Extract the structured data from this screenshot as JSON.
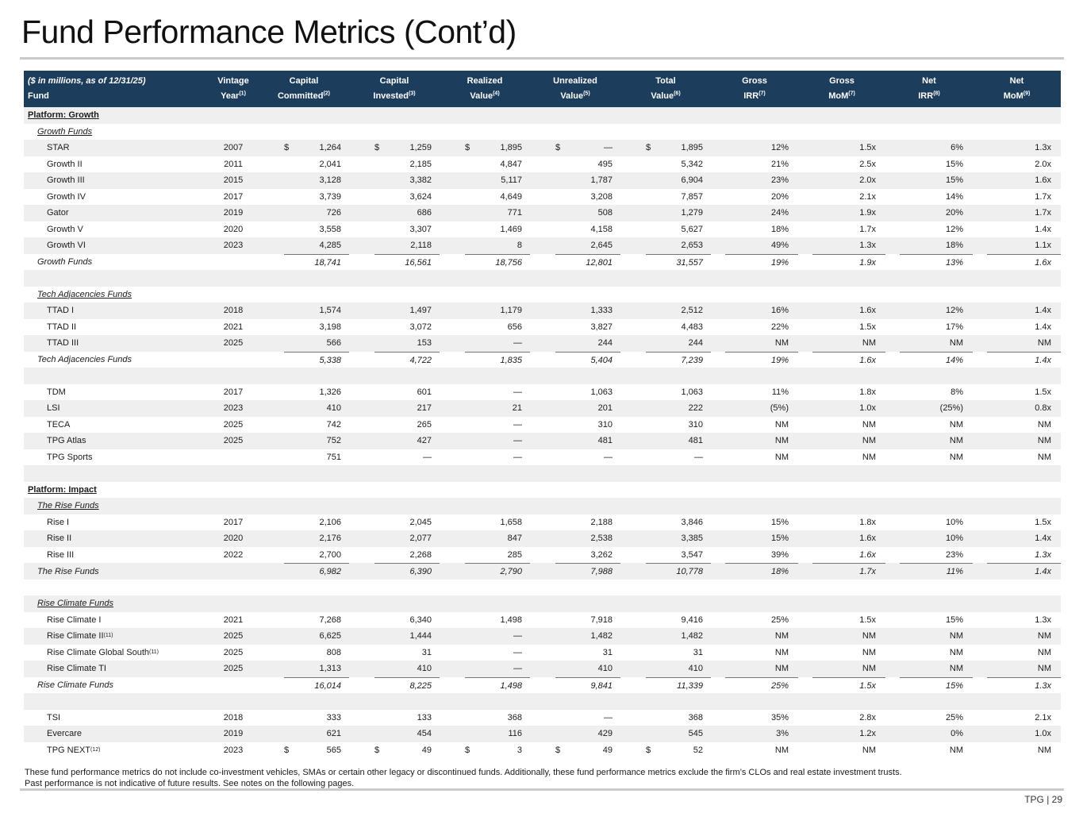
{
  "page": {
    "title": "Fund Performance Metrics (Cont’d)",
    "note_line1": "These fund performance metrics do not include co-investment vehicles, SMAs or certain other legacy or discontinued funds. Additionally, these fund performance metrics exclude the firm’s CLOs and real estate investment trusts.",
    "note_line2": "Past performance is not indicative of future results. See notes on the following pages.",
    "page_label": "TPG | 29"
  },
  "colors": {
    "header_bg": "#1d3d5c",
    "header_text": "#ffffff",
    "row_stripe": "#efefef",
    "total_rule": "#757575",
    "divider": "#c9c9c9",
    "text": "#1b1b1b"
  },
  "table": {
    "columns": [
      {
        "line1": "($ in millions, as of 12/31/25)",
        "line2": "Fund",
        "sup": ""
      },
      {
        "line1": "Vintage",
        "line2": "Year",
        "sup": "(1)"
      },
      {
        "line1": "Capital",
        "line2": "Committed",
        "sup": "(2)"
      },
      {
        "line1": "Capital",
        "line2": "Invested",
        "sup": "(3)"
      },
      {
        "line1": "Realized",
        "line2": "Value",
        "sup": "(4)"
      },
      {
        "line1": "Unrealized",
        "line2": "Value",
        "sup": "(5)"
      },
      {
        "line1": "Total",
        "line2": "Value",
        "sup": "(6)"
      },
      {
        "line1": "Gross",
        "line2": "IRR",
        "sup": "(7)"
      },
      {
        "line1": "Gross",
        "line2": "MoM",
        "sup": "(7)"
      },
      {
        "line1": "Net",
        "line2": "IRR",
        "sup": "(8)"
      },
      {
        "line1": "Net",
        "line2": "MoM",
        "sup": "(9)"
      }
    ],
    "rows": [
      {
        "t": "platform",
        "label": "Platform: Growth"
      },
      {
        "t": "sub",
        "label": "Growth Funds"
      },
      {
        "t": "fund",
        "name": "STAR",
        "sup": "",
        "vintage": "2007",
        "ds": true,
        "committed": "1,264",
        "invested": "1,259",
        "realized": "1,895",
        "unrealized": "—",
        "total_value": "1,895",
        "gross_irr": "12%",
        "gross_mom": "1.5x",
        "net_irr": "6%",
        "net_mom": "1.3x"
      },
      {
        "t": "fund",
        "name": "Growth II",
        "sup": "",
        "vintage": "2011",
        "committed": "2,041",
        "invested": "2,185",
        "realized": "4,847",
        "unrealized": "495",
        "total_value": "5,342",
        "gross_irr": "21%",
        "gross_mom": "2.5x",
        "net_irr": "15%",
        "net_mom": "2.0x"
      },
      {
        "t": "fund",
        "name": "Growth III",
        "sup": "",
        "vintage": "2015",
        "committed": "3,128",
        "invested": "3,382",
        "realized": "5,117",
        "unrealized": "1,787",
        "total_value": "6,904",
        "gross_irr": "23%",
        "gross_mom": "2.0x",
        "net_irr": "15%",
        "net_mom": "1.6x"
      },
      {
        "t": "fund",
        "name": "Growth IV",
        "sup": "",
        "vintage": "2017",
        "committed": "3,739",
        "invested": "3,624",
        "realized": "4,649",
        "unrealized": "3,208",
        "total_value": "7,857",
        "gross_irr": "20%",
        "gross_mom": "2.1x",
        "net_irr": "14%",
        "net_mom": "1.7x"
      },
      {
        "t": "fund",
        "name": "Gator",
        "sup": "",
        "vintage": "2019",
        "committed": "726",
        "invested": "686",
        "realized": "771",
        "unrealized": "508",
        "total_value": "1,279",
        "gross_irr": "24%",
        "gross_mom": "1.9x",
        "net_irr": "20%",
        "net_mom": "1.7x"
      },
      {
        "t": "fund",
        "name": "Growth V",
        "sup": "",
        "vintage": "2020",
        "committed": "3,558",
        "invested": "3,307",
        "realized": "1,469",
        "unrealized": "4,158",
        "total_value": "5,627",
        "gross_irr": "18%",
        "gross_mom": "1.7x",
        "net_irr": "12%",
        "net_mom": "1.4x"
      },
      {
        "t": "fund",
        "name": "Growth VI",
        "sup": "",
        "vintage": "2023",
        "committed": "4,285",
        "invested": "2,118",
        "realized": "8",
        "unrealized": "2,645",
        "total_value": "2,653",
        "gross_irr": "49%",
        "gross_mom": "1.3x",
        "net_irr": "18%",
        "net_mom": "1.1x"
      },
      {
        "t": "total",
        "name": "Growth Funds",
        "vintage": "",
        "committed": "18,741",
        "invested": "16,561",
        "realized": "18,756",
        "unrealized": "12,801",
        "total_value": "31,557",
        "gross_irr": "19%",
        "gross_mom": "1.9x",
        "net_irr": "13%",
        "net_mom": "1.6x"
      },
      {
        "t": "spacer"
      },
      {
        "t": "sub",
        "label": "Tech Adjacencies Funds"
      },
      {
        "t": "fund",
        "name": "TTAD I",
        "sup": "",
        "vintage": "2018",
        "committed": "1,574",
        "invested": "1,497",
        "realized": "1,179",
        "unrealized": "1,333",
        "total_value": "2,512",
        "gross_irr": "16%",
        "gross_mom": "1.6x",
        "net_irr": "12%",
        "net_mom": "1.4x"
      },
      {
        "t": "fund",
        "name": "TTAD II",
        "sup": "",
        "vintage": "2021",
        "committed": "3,198",
        "invested": "3,072",
        "realized": "656",
        "unrealized": "3,827",
        "total_value": "4,483",
        "gross_irr": "22%",
        "gross_mom": "1.5x",
        "net_irr": "17%",
        "net_mom": "1.4x"
      },
      {
        "t": "fund",
        "name": "TTAD III",
        "sup": "",
        "vintage": "2025",
        "committed": "566",
        "invested": "153",
        "realized": "—",
        "unrealized": "244",
        "total_value": "244",
        "gross_irr": "NM",
        "gross_mom": "NM",
        "net_irr": "NM",
        "net_mom": "NM"
      },
      {
        "t": "total",
        "name": "Tech Adjacencies Funds",
        "vintage": "",
        "committed": "5,338",
        "invested": "4,722",
        "realized": "1,835",
        "unrealized": "5,404",
        "total_value": "7,239",
        "gross_irr": "19%",
        "gross_mom": "1.6x",
        "net_irr": "14%",
        "net_mom": "1.4x"
      },
      {
        "t": "spacer"
      },
      {
        "t": "fund",
        "name": "TDM",
        "sup": "",
        "vintage": "2017",
        "committed": "1,326",
        "invested": "601",
        "realized": "—",
        "unrealized": "1,063",
        "total_value": "1,063",
        "gross_irr": "11%",
        "gross_mom": "1.8x",
        "net_irr": "8%",
        "net_mom": "1.5x"
      },
      {
        "t": "fund",
        "name": "LSI",
        "sup": "",
        "vintage": "2023",
        "committed": "410",
        "invested": "217",
        "realized": "21",
        "unrealized": "201",
        "total_value": "222",
        "gross_irr": "(5%)",
        "gross_mom": "1.0x",
        "net_irr": "(25%)",
        "net_mom": "0.8x"
      },
      {
        "t": "fund",
        "name": "TECA",
        "sup": "",
        "vintage": "2025",
        "committed": "742",
        "invested": "265",
        "realized": "—",
        "unrealized": "310",
        "total_value": "310",
        "gross_irr": "NM",
        "gross_mom": "NM",
        "net_irr": "NM",
        "net_mom": "NM"
      },
      {
        "t": "fund",
        "name": "TPG Atlas",
        "sup": "",
        "vintage": "2025",
        "committed": "752",
        "invested": "427",
        "realized": "—",
        "unrealized": "481",
        "total_value": "481",
        "gross_irr": "NM",
        "gross_mom": "NM",
        "net_irr": "NM",
        "net_mom": "NM"
      },
      {
        "t": "fund",
        "name": "TPG Sports",
        "sup": "",
        "vintage": "",
        "committed": "751",
        "invested": "—",
        "realized": "—",
        "unrealized": "—",
        "total_value": "—",
        "gross_irr": "NM",
        "gross_mom": "NM",
        "net_irr": "NM",
        "net_mom": "NM"
      },
      {
        "t": "spacer"
      },
      {
        "t": "platform",
        "label": "Platform: Impact"
      },
      {
        "t": "sub",
        "label": "The Rise Funds"
      },
      {
        "t": "fund",
        "name": "Rise I",
        "sup": "",
        "vintage": "2017",
        "committed": "2,106",
        "invested": "2,045",
        "realized": "1,658",
        "unrealized": "2,188",
        "total_value": "3,846",
        "gross_irr": "15%",
        "gross_mom": "1.8x",
        "net_irr": "10%",
        "net_mom": "1.5x"
      },
      {
        "t": "fund",
        "name": "Rise II",
        "sup": "",
        "vintage": "2020",
        "committed": "2,176",
        "invested": "2,077",
        "realized": "847",
        "unrealized": "2,538",
        "total_value": "3,385",
        "gross_irr": "15%",
        "gross_mom": "1.6x",
        "net_irr": "10%",
        "net_mom": "1.4x"
      },
      {
        "t": "fund",
        "name": "Rise III",
        "sup": "",
        "vintage": "2022",
        "mom_italic": true,
        "committed": "2,700",
        "invested": "2,268",
        "realized": "285",
        "unrealized": "3,262",
        "total_value": "3,547",
        "gross_irr": "39%",
        "gross_mom": "1.6x",
        "net_irr": "23%",
        "net_mom": "1.3x"
      },
      {
        "t": "total",
        "name": "The Rise Funds",
        "vintage": "",
        "committed": "6,982",
        "invested": "6,390",
        "realized": "2,790",
        "unrealized": "7,988",
        "total_value": "10,778",
        "gross_irr": "18%",
        "gross_mom": "1.7x",
        "net_irr": "11%",
        "net_mom": "1.4x"
      },
      {
        "t": "spacer"
      },
      {
        "t": "sub",
        "label": "Rise Climate Funds"
      },
      {
        "t": "fund",
        "name": "Rise Climate I",
        "sup": "",
        "vintage": "2021",
        "committed": "7,268",
        "invested": "6,340",
        "realized": "1,498",
        "unrealized": "7,918",
        "total_value": "9,416",
        "gross_irr": "25%",
        "gross_mom": "1.5x",
        "net_irr": "15%",
        "net_mom": "1.3x"
      },
      {
        "t": "fund",
        "name": "Rise Climate II",
        "sup": "(11)",
        "vintage": "2025",
        "committed": "6,625",
        "invested": "1,444",
        "realized": "—",
        "unrealized": "1,482",
        "total_value": "1,482",
        "gross_irr": "NM",
        "gross_mom": "NM",
        "net_irr": "NM",
        "net_mom": "NM"
      },
      {
        "t": "fund",
        "name": "Rise Climate Global South",
        "sup": "(11)",
        "vintage": "2025",
        "committed": "808",
        "invested": "31",
        "realized": "—",
        "unrealized": "31",
        "total_value": "31",
        "gross_irr": "NM",
        "gross_mom": "NM",
        "net_irr": "NM",
        "net_mom": "NM"
      },
      {
        "t": "fund",
        "name": "Rise Climate TI",
        "sup": "",
        "vintage": "2025",
        "committed": "1,313",
        "invested": "410",
        "realized": "—",
        "unrealized": "410",
        "total_value": "410",
        "gross_irr": "NM",
        "gross_mom": "NM",
        "net_irr": "NM",
        "net_mom": "NM"
      },
      {
        "t": "total",
        "name": "Rise Climate Funds",
        "vintage": "",
        "committed": "16,014",
        "invested": "8,225",
        "realized": "1,498",
        "unrealized": "9,841",
        "total_value": "11,339",
        "gross_irr": "25%",
        "gross_mom": "1.5x",
        "net_irr": "15%",
        "net_mom": "1.3x"
      },
      {
        "t": "spacer"
      },
      {
        "t": "fund",
        "name": "TSI",
        "sup": "",
        "vintage": "2018",
        "committed": "333",
        "invested": "133",
        "realized": "368",
        "unrealized": "—",
        "total_value": "368",
        "gross_irr": "35%",
        "gross_mom": "2.8x",
        "net_irr": "25%",
        "net_mom": "2.1x"
      },
      {
        "t": "fund",
        "name": "Evercare",
        "sup": "",
        "vintage": "2019",
        "committed": "621",
        "invested": "454",
        "realized": "116",
        "unrealized": "429",
        "total_value": "545",
        "gross_irr": "3%",
        "gross_mom": "1.2x",
        "net_irr": "0%",
        "net_mom": "1.0x"
      },
      {
        "t": "fund",
        "name": "TPG NEXT",
        "sup": "(12)",
        "vintage": "2023",
        "ds": true,
        "committed": "565",
        "invested": "49",
        "realized": "3",
        "unrealized": "49",
        "total_value": "52",
        "gross_irr": "NM",
        "gross_mom": "NM",
        "net_irr": "NM",
        "net_mom": "NM"
      }
    ]
  }
}
